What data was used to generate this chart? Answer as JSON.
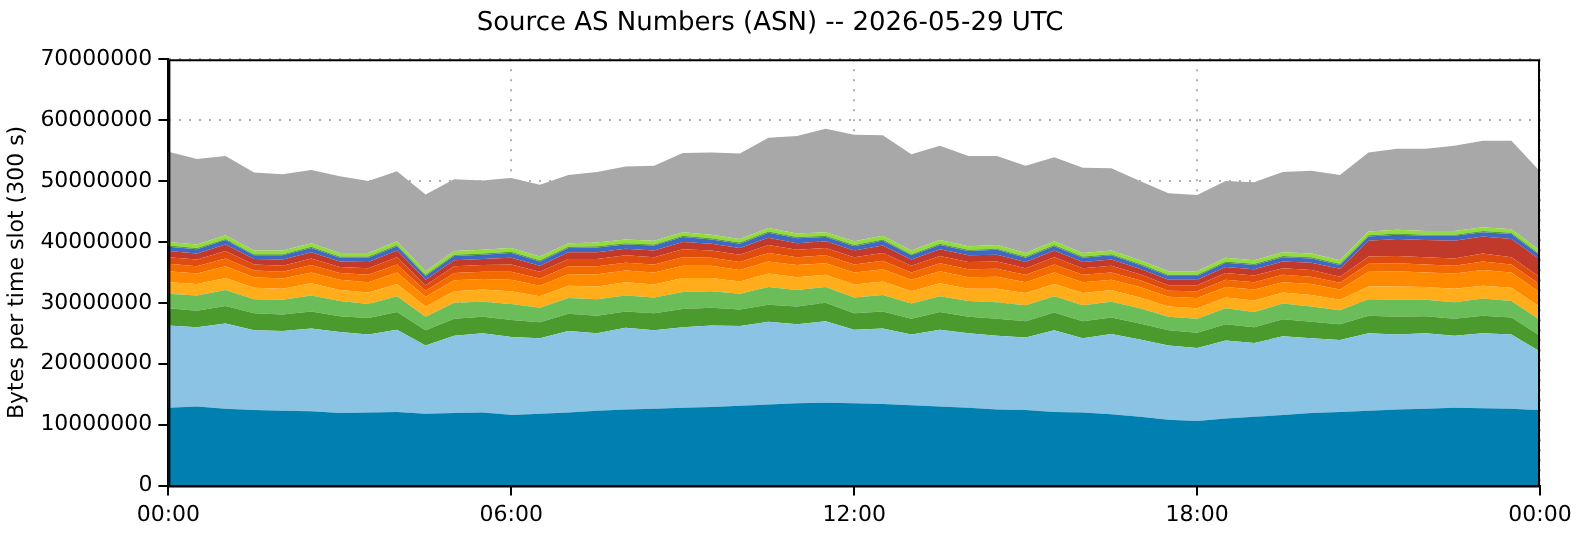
{
  "chart_data": {
    "type": "area",
    "title": "Source AS Numbers (ASN) -- 2026-05-29 UTC",
    "ylabel": "Bytes per time slot (300 s)",
    "stacked": true,
    "grid": true,
    "legend": false,
    "marker": "none",
    "x": [
      0,
      0.5,
      1,
      1.5,
      2,
      2.5,
      3,
      3.5,
      4,
      4.5,
      5,
      5.5,
      6,
      6.5,
      7,
      7.5,
      8,
      8.5,
      9,
      9.5,
      10,
      10.5,
      11,
      11.5,
      12,
      12.5,
      13,
      13.5,
      14,
      14.5,
      15,
      15.5,
      16,
      16.5,
      17,
      17.5,
      18,
      18.5,
      19,
      19.5,
      20,
      20.5,
      21,
      21.5,
      22,
      22.5,
      23,
      23.5,
      24
    ],
    "xlim": [
      0,
      24
    ],
    "xticks": [
      {
        "value": 0,
        "label": "00:00"
      },
      {
        "value": 6,
        "label": "06:00"
      },
      {
        "value": 12,
        "label": "12:00"
      },
      {
        "value": 18,
        "label": "18:00"
      },
      {
        "value": 24,
        "label": "00:00"
      }
    ],
    "ylim": [
      0,
      70000000
    ],
    "yticks": [
      0,
      10000000,
      20000000,
      30000000,
      40000000,
      50000000,
      60000000,
      70000000
    ],
    "series": [
      {
        "color": "#0080b1",
        "values": [
          12800000.0,
          13000000.0,
          12600000.0,
          12400000.0,
          12300000.0,
          12200000.0,
          11900000.0,
          12000000.0,
          12100000.0,
          11800000.0,
          11900000.0,
          12000000.0,
          11600000.0,
          11800000.0,
          12000000.0,
          12300000.0,
          12500000.0,
          12600000.0,
          12800000.0,
          12900000.0,
          13100000.0,
          13300000.0,
          13500000.0,
          13600000.0,
          13500000.0,
          13400000.0,
          13200000.0,
          13000000.0,
          12800000.0,
          12500000.0,
          12400000.0,
          12100000.0,
          12000000.0,
          11700000.0,
          11300000.0,
          10800000.0,
          10600000.0,
          11000000.0,
          11300000.0,
          11600000.0,
          11900000.0,
          12100000.0,
          12300000.0,
          12500000.0,
          12600000.0,
          12800000.0,
          12700000.0,
          12600000.0,
          12400000.0
        ]
      },
      {
        "color": "#8ac3e3",
        "values": [
          13500000.0,
          13000000.0,
          14000000.0,
          13100000.0,
          13100000.0,
          13600000.0,
          13300000.0,
          12800000.0,
          13500000.0,
          11200000.0,
          12700000.0,
          13000000.0,
          12800000.0,
          12400000.0,
          13400000.0,
          12700000.0,
          13400000.0,
          12900000.0,
          13200000.0,
          13400000.0,
          13100000.0,
          13600000.0,
          13000000.0,
          13400000.0,
          12100000.0,
          12400000.0,
          11600000.0,
          12600000.0,
          12200000.0,
          12100000.0,
          11900000.0,
          13400000.0,
          12200000.0,
          13200000.0,
          12700000.0,
          12200000.0,
          12000000.0,
          12800000.0,
          12100000.0,
          12900000.0,
          12300000.0,
          11800000.0,
          12700000.0,
          12300000.0,
          12400000.0,
          11800000.0,
          12300000.0,
          12200000.0,
          9600000.0
        ]
      },
      {
        "color": "#4b9a2e",
        "values": [
          2800000.0,
          2700000.0,
          2900000.0,
          2800000.0,
          2700000.0,
          2800000.0,
          2600000.0,
          2700000.0,
          2900000.0,
          2500000.0,
          2800000.0,
          2700000.0,
          2800000.0,
          2600000.0,
          2800000.0,
          2900000.0,
          2700000.0,
          2800000.0,
          3000000.0,
          2900000.0,
          2700000.0,
          2800000.0,
          2900000.0,
          3000000.0,
          2700000.0,
          2800000.0,
          2600000.0,
          2900000.0,
          2700000.0,
          2800000.0,
          2700000.0,
          2900000.0,
          2800000.0,
          2700000.0,
          2600000.0,
          2500000.0,
          2500000.0,
          2700000.0,
          2600000.0,
          2800000.0,
          2700000.0,
          2600000.0,
          2900000.0,
          2900000.0,
          2800000.0,
          2800000.0,
          2900000.0,
          2800000.0,
          2600000.0
        ]
      },
      {
        "color": "#6bbd59",
        "values": [
          2400000.0,
          2500000.0,
          2600000.0,
          2300000.0,
          2400000.0,
          2600000.0,
          2500000.0,
          2300000.0,
          2600000.0,
          2200000.0,
          2600000.0,
          2500000.0,
          2600000.0,
          2400000.0,
          2600000.0,
          2700000.0,
          2600000.0,
          2600000.0,
          2800000.0,
          2700000.0,
          2600000.0,
          2900000.0,
          2700000.0,
          2600000.0,
          2600000.0,
          2700000.0,
          2500000.0,
          2600000.0,
          2600000.0,
          2700000.0,
          2600000.0,
          2700000.0,
          2600000.0,
          2600000.0,
          2500000.0,
          2200000.0,
          2300000.0,
          2600000.0,
          2500000.0,
          2600000.0,
          2500000.0,
          2300000.0,
          2700000.0,
          2800000.0,
          2700000.0,
          2700000.0,
          2800000.0,
          2700000.0,
          2600000.0
        ]
      },
      {
        "color": "#ffad1b",
        "values": [
          1900000.0,
          1900000.0,
          2000000.0,
          1900000.0,
          1800000.0,
          2000000.0,
          1800000.0,
          1900000.0,
          2000000.0,
          1700000.0,
          1900000.0,
          2000000.0,
          2100000.0,
          1900000.0,
          2000000.0,
          2100000.0,
          2200000.0,
          2100000.0,
          2300000.0,
          2200000.0,
          2000000.0,
          2200000.0,
          2100000.0,
          2000000.0,
          2100000.0,
          2200000.0,
          2000000.0,
          2100000.0,
          2000000.0,
          2200000.0,
          2000000.0,
          2000000.0,
          2000000.0,
          1900000.0,
          1800000.0,
          1700000.0,
          1700000.0,
          1800000.0,
          1900000.0,
          1800000.0,
          1900000.0,
          1700000.0,
          2100000.0,
          2200000.0,
          2100000.0,
          2200000.0,
          2100000.0,
          2200000.0,
          2100000.0
        ]
      },
      {
        "color": "#ff8a00",
        "values": [
          1800000.0,
          1700000.0,
          1900000.0,
          1700000.0,
          1700000.0,
          1800000.0,
          1700000.0,
          1700000.0,
          1900000.0,
          1600000.0,
          1800000.0,
          1700000.0,
          1900000.0,
          1700000.0,
          1900000.0,
          2000000.0,
          1900000.0,
          2000000.0,
          2000000.0,
          2000000.0,
          1900000.0,
          2000000.0,
          2000000.0,
          1900000.0,
          2000000.0,
          2000000.0,
          1900000.0,
          2000000.0,
          1900000.0,
          2000000.0,
          1800000.0,
          1900000.0,
          1800000.0,
          1700000.0,
          1700000.0,
          1600000.0,
          1700000.0,
          1700000.0,
          1800000.0,
          1700000.0,
          1800000.0,
          1700000.0,
          2400000.0,
          2500000.0,
          2400000.0,
          2500000.0,
          2600000.0,
          2500000.0,
          2400000.0
        ]
      },
      {
        "color": "#f26a00",
        "values": [
          1200000.0,
          1200000.0,
          1300000.0,
          1100000.0,
          1100000.0,
          1200000.0,
          1100000.0,
          1200000.0,
          1300000.0,
          1000000.0,
          1200000.0,
          1200000.0,
          1300000.0,
          1200000.0,
          1300000.0,
          1300000.0,
          1300000.0,
          1300000.0,
          1400000.0,
          1300000.0,
          1300000.0,
          1400000.0,
          1300000.0,
          1300000.0,
          1300000.0,
          1400000.0,
          1200000.0,
          1300000.0,
          1300000.0,
          1300000.0,
          1200000.0,
          1300000.0,
          1200000.0,
          1200000.0,
          1100000.0,
          1000000.0,
          1100000.0,
          1200000.0,
          1200000.0,
          1200000.0,
          1200000.0,
          1100000.0,
          1300000.0,
          1300000.0,
          1300000.0,
          1300000.0,
          1400000.0,
          1300000.0,
          1300000.0
        ]
      },
      {
        "color": "#e04b0e",
        "values": [
          1100000.0,
          1100000.0,
          1200000.0,
          1000000.0,
          1000000.0,
          1100000.0,
          1000000.0,
          1100000.0,
          1200000.0,
          900000.0,
          1100000.0,
          1100000.0,
          1200000.0,
          1100000.0,
          1200000.0,
          1200000.0,
          1200000.0,
          1200000.0,
          1300000.0,
          1200000.0,
          1200000.0,
          1300000.0,
          1200000.0,
          1200000.0,
          1200000.0,
          1300000.0,
          1100000.0,
          1200000.0,
          1200000.0,
          1200000.0,
          1100000.0,
          1200000.0,
          1100000.0,
          1100000.0,
          1000000.0,
          900000.0,
          1000000.0,
          1100000.0,
          1100000.0,
          1100000.0,
          1100000.0,
          1000000.0,
          1200000.0,
          1200000.0,
          1200000.0,
          1200000.0,
          1300000.0,
          1200000.0,
          1200000.0
        ]
      },
      {
        "color": "#c0392b",
        "values": [
          1000000.0,
          1000000.0,
          1100000.0,
          900000.0,
          1000000.0,
          1000000.0,
          900000.0,
          1000000.0,
          1100000.0,
          900000.0,
          1000000.0,
          1000000.0,
          1100000.0,
          1000000.0,
          1100000.0,
          1100000.0,
          1100000.0,
          1100000.0,
          1200000.0,
          1100000.0,
          1100000.0,
          1200000.0,
          1100000.0,
          1100000.0,
          1100000.0,
          1200000.0,
          1000000.0,
          1100000.0,
          1100000.0,
          1100000.0,
          1000000.0,
          1100000.0,
          1000000.0,
          1000000.0,
          900000.0,
          900000.0,
          900000.0,
          1000000.0,
          1000000.0,
          1100000.0,
          1200000.0,
          1300000.0,
          2600000.0,
          2800000.0,
          2800000.0,
          2900000.0,
          2800000.0,
          3000000.0,
          2900000.0
        ]
      },
      {
        "color": "#3d68c4",
        "values": [
          700000.0,
          700000.0,
          700000.0,
          600000.0,
          700000.0,
          700000.0,
          600000.0,
          700000.0,
          700000.0,
          600000.0,
          700000.0,
          700000.0,
          800000.0,
          700000.0,
          700000.0,
          800000.0,
          700000.0,
          800000.0,
          800000.0,
          700000.0,
          700000.0,
          800000.0,
          800000.0,
          700000.0,
          700000.0,
          800000.0,
          700000.0,
          700000.0,
          700000.0,
          800000.0,
          700000.0,
          700000.0,
          700000.0,
          700000.0,
          600000.0,
          600000.0,
          600000.0,
          700000.0,
          700000.0,
          700000.0,
          700000.0,
          600000.0,
          700000.0,
          700000.0,
          700000.0,
          800000.0,
          700000.0,
          800000.0,
          700000.0
        ]
      },
      {
        "color": "#5aa02c",
        "values": [
          200000.0,
          200000.0,
          200000.0,
          200000.0,
          200000.0,
          200000.0,
          200000.0,
          200000.0,
          200000.0,
          200000.0,
          200000.0,
          200000.0,
          200000.0,
          200000.0,
          200000.0,
          200000.0,
          200000.0,
          200000.0,
          200000.0,
          200000.0,
          200000.0,
          200000.0,
          200000.0,
          200000.0,
          200000.0,
          200000.0,
          200000.0,
          200000.0,
          200000.0,
          200000.0,
          200000.0,
          200000.0,
          200000.0,
          200000.0,
          200000.0,
          200000.0,
          200000.0,
          200000.0,
          200000.0,
          200000.0,
          200000.0,
          200000.0,
          200000.0,
          200000.0,
          200000.0,
          200000.0,
          200000.0,
          200000.0,
          200000.0
        ]
      },
      {
        "color": "#92dc3e",
        "values": [
          600000.0,
          600000.0,
          600000.0,
          600000.0,
          600000.0,
          600000.0,
          600000.0,
          600000.0,
          600000.0,
          600000.0,
          600000.0,
          600000.0,
          600000.0,
          600000.0,
          600000.0,
          600000.0,
          600000.0,
          600000.0,
          600000.0,
          600000.0,
          600000.0,
          600000.0,
          600000.0,
          600000.0,
          600000.0,
          600000.0,
          600000.0,
          600000.0,
          600000.0,
          600000.0,
          600000.0,
          600000.0,
          600000.0,
          600000.0,
          600000.0,
          600000.0,
          600000.0,
          600000.0,
          600000.0,
          600000.0,
          600000.0,
          600000.0,
          600000.0,
          600000.0,
          600000.0,
          600000.0,
          600000.0,
          600000.0,
          600000.0
        ]
      },
      {
        "color": "#a8a8a8",
        "values": [
          14800000.0,
          14000000.0,
          13000000.0,
          12800000.0,
          12500000.0,
          12000000.0,
          12600000.0,
          11800000.0,
          11500000.0,
          12600000.0,
          11800000.0,
          11400000.0,
          11500000.0,
          11800000.0,
          11200000.0,
          11600000.0,
          12000000.0,
          12300000.0,
          13000000.0,
          13500000.0,
          14000000.0,
          14800000.0,
          16000000.0,
          17000000.0,
          17500000.0,
          16500000.0,
          15800000.0,
          15500000.0,
          14800000.0,
          14600000.0,
          14300000.0,
          13800000.0,
          14000000.0,
          13500000.0,
          13000000.0,
          12800000.0,
          12500000.0,
          12600000.0,
          12800000.0,
          13200000.0,
          13600000.0,
          14000000.0,
          13000000.0,
          13300000.0,
          13500000.0,
          14000000.0,
          14200000.0,
          14500000.0,
          13000000.0
        ]
      }
    ]
  }
}
